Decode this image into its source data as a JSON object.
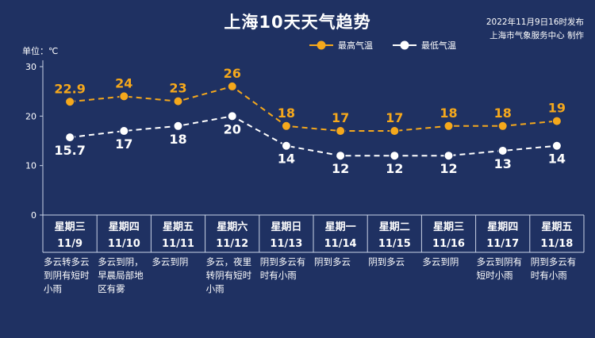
{
  "header": {
    "title": "上海10天天气趋势",
    "publish_time": "2022年11月9日16时发布",
    "publisher": "上海市气象服务中心 制作"
  },
  "colors": {
    "background": "#1f3162",
    "high": "#f5a81c",
    "low": "#ffffff",
    "axis": "#c9d2e6"
  },
  "chart_data": {
    "type": "line",
    "unit_label": "单位：℃",
    "ylim": [
      0,
      30
    ],
    "yticks": [
      0,
      10,
      20,
      30
    ],
    "legend_position": "top-right",
    "categories": [
      {
        "weekday": "星期三",
        "date": "11/9",
        "weather": "多云转多云到阴有短时小雨"
      },
      {
        "weekday": "星期四",
        "date": "11/10",
        "weather": "多云到阴，早晨局部地区有雾"
      },
      {
        "weekday": "星期五",
        "date": "11/11",
        "weather": "多云到阴"
      },
      {
        "weekday": "星期六",
        "date": "11/12",
        "weather": "多云，夜里转阴有短时小雨"
      },
      {
        "weekday": "星期日",
        "date": "11/13",
        "weather": "阴到多云有时有小雨"
      },
      {
        "weekday": "星期一",
        "date": "11/14",
        "weather": "阴到多云"
      },
      {
        "weekday": "星期二",
        "date": "11/15",
        "weather": "阴到多云"
      },
      {
        "weekday": "星期三",
        "date": "11/16",
        "weather": "多云到阴"
      },
      {
        "weekday": "星期四",
        "date": "11/17",
        "weather": "多云到阴有短时小雨"
      },
      {
        "weekday": "星期五",
        "date": "11/18",
        "weather": "阴到多云有时有小雨"
      }
    ],
    "series": [
      {
        "name": "最高气温",
        "key": "high",
        "values": [
          "22.9",
          "24",
          "23",
          "26",
          "18",
          "17",
          "17",
          "18",
          "18",
          "19"
        ]
      },
      {
        "name": "最低气温",
        "key": "low",
        "values": [
          "15.7",
          "17",
          "18",
          "20",
          "14",
          "12",
          "12",
          "12",
          "13",
          "14"
        ]
      }
    ]
  }
}
